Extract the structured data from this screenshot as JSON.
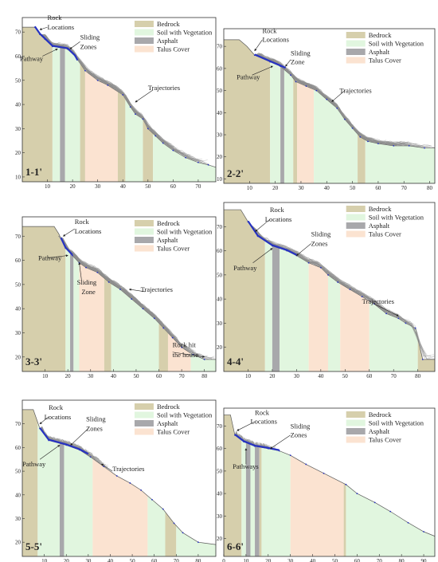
{
  "colors": {
    "bedrock": "#d6cfac",
    "soil": "#e1f6df",
    "asphalt": "#a8a8ab",
    "talus": "#fbe3d1",
    "trajectory": "#8d8d8d",
    "rock": "#2632c2",
    "outline": "#5a5a5a"
  },
  "legend_labels": [
    "Bedrock",
    "Soil with Vegetation",
    "Asphalt",
    "Talus Cover"
  ],
  "panels": [
    {
      "label": "1-1'",
      "xlim": [
        0,
        77
      ],
      "ylim": [
        8,
        76
      ],
      "xticks": [
        10,
        20,
        30,
        40,
        50,
        60,
        70
      ],
      "yticks": [
        10,
        20,
        30,
        40,
        50,
        60,
        70
      ],
      "profile": [
        [
          0,
          72
        ],
        [
          5,
          72
        ],
        [
          7,
          69
        ],
        [
          9,
          67
        ],
        [
          12,
          64
        ],
        [
          18,
          63
        ],
        [
          21,
          60
        ],
        [
          25,
          54
        ],
        [
          30,
          50
        ],
        [
          34,
          48
        ],
        [
          40,
          44
        ],
        [
          43,
          39
        ],
        [
          45,
          36
        ],
        [
          48,
          34
        ],
        [
          50,
          30
        ],
        [
          53,
          27
        ],
        [
          56,
          24
        ],
        [
          60,
          21
        ],
        [
          65,
          18
        ],
        [
          70,
          16
        ],
        [
          74,
          15
        ],
        [
          77,
          14
        ]
      ],
      "zones": [
        {
          "type": "bedrock",
          "x0": 0,
          "x1": 12
        },
        {
          "type": "soil",
          "x0": 12,
          "x1": 15
        },
        {
          "type": "asphalt",
          "x0": 15,
          "x1": 17
        },
        {
          "type": "soil",
          "x0": 17,
          "x1": 23
        },
        {
          "type": "bedrock",
          "x0": 23,
          "x1": 25
        },
        {
          "type": "talus",
          "x0": 25,
          "x1": 38
        },
        {
          "type": "bedrock",
          "x0": 38,
          "x1": 41
        },
        {
          "type": "soil",
          "x0": 41,
          "x1": 48
        },
        {
          "type": "bedrock",
          "x0": 48,
          "x1": 52
        },
        {
          "type": "soil",
          "x0": 52,
          "x1": 77
        }
      ],
      "rock_path": [
        [
          5,
          72
        ],
        [
          7,
          69
        ],
        [
          9,
          67
        ],
        [
          12,
          64
        ],
        [
          18,
          63
        ],
        [
          21,
          60
        ],
        [
          22,
          58
        ]
      ],
      "traj_start": [
        7,
        69
      ],
      "traj_end_x": [
        50,
        76
      ],
      "traj_count": 60,
      "annotations": [
        {
          "text": "Rock",
          "x": 10,
          "y": 75
        },
        {
          "text": "Locations",
          "x": 10,
          "y": 71
        },
        {
          "text": "Sliding",
          "x": 23,
          "y": 67
        },
        {
          "text": "Zones",
          "x": 23,
          "y": 63
        },
        {
          "text": "Pathway",
          "x": -1,
          "y": 58
        },
        {
          "text": "Trajectories",
          "x": 50,
          "y": 46
        }
      ]
    },
    {
      "label": "2-2'",
      "xlim": [
        0,
        82
      ],
      "ylim": [
        8,
        78
      ],
      "xticks": [
        10,
        20,
        30,
        40,
        50,
        60,
        70,
        80
      ],
      "yticks": [
        10,
        20,
        30,
        40,
        50,
        60,
        70
      ],
      "profile": [
        [
          0,
          73
        ],
        [
          6,
          73
        ],
        [
          9,
          70
        ],
        [
          12,
          66
        ],
        [
          18,
          63
        ],
        [
          22,
          61
        ],
        [
          26,
          57
        ],
        [
          28,
          54
        ],
        [
          32,
          52
        ],
        [
          36,
          50
        ],
        [
          40,
          46
        ],
        [
          44,
          42
        ],
        [
          47,
          37
        ],
        [
          50,
          33
        ],
        [
          53,
          29
        ],
        [
          56,
          27
        ],
        [
          60,
          26
        ],
        [
          66,
          25
        ],
        [
          72,
          25
        ],
        [
          78,
          24
        ],
        [
          82,
          24
        ]
      ],
      "zones": [
        {
          "type": "bedrock",
          "x0": 0,
          "x1": 18
        },
        {
          "type": "soil",
          "x0": 18,
          "x1": 22
        },
        {
          "type": "asphalt",
          "x0": 22,
          "x1": 23.5
        },
        {
          "type": "soil",
          "x0": 23.5,
          "x1": 27
        },
        {
          "type": "bedrock",
          "x0": 27,
          "x1": 28.5
        },
        {
          "type": "talus",
          "x0": 28.5,
          "x1": 35
        },
        {
          "type": "soil",
          "x0": 35,
          "x1": 52
        },
        {
          "type": "bedrock",
          "x0": 52,
          "x1": 55
        },
        {
          "type": "soil",
          "x0": 55,
          "x1": 82
        }
      ],
      "rock_path": [
        [
          12,
          66
        ],
        [
          18,
          63
        ],
        [
          22,
          61
        ],
        [
          24,
          60
        ]
      ],
      "traj_start": [
        12,
        66
      ],
      "traj_end_x": [
        50,
        82
      ],
      "traj_count": 70,
      "annotations": [
        {
          "text": "Rock",
          "x": 15,
          "y": 76
        },
        {
          "text": "Locations",
          "x": 15,
          "y": 72
        },
        {
          "text": "Sliding",
          "x": 26,
          "y": 66
        },
        {
          "text": "Zone",
          "x": 26,
          "y": 62
        },
        {
          "text": "Pathway",
          "x": 5,
          "y": 55
        },
        {
          "text": "Trajectories",
          "x": 45,
          "y": 49
        }
      ]
    },
    {
      "label": "3-3'",
      "xlim": [
        0,
        85
      ],
      "ylim": [
        14,
        78
      ],
      "xticks": [
        10,
        20,
        30,
        40,
        50,
        60,
        70,
        80
      ],
      "yticks": [
        20,
        30,
        40,
        50,
        60,
        70
      ],
      "profile": [
        [
          0,
          74
        ],
        [
          14,
          74
        ],
        [
          16,
          71
        ],
        [
          19,
          65
        ],
        [
          22,
          62
        ],
        [
          25,
          59
        ],
        [
          28,
          57
        ],
        [
          33,
          55
        ],
        [
          38,
          51
        ],
        [
          43,
          48
        ],
        [
          48,
          44
        ],
        [
          53,
          40
        ],
        [
          58,
          36
        ],
        [
          62,
          32
        ],
        [
          66,
          28
        ],
        [
          70,
          24
        ],
        [
          75,
          21
        ],
        [
          80,
          19
        ],
        [
          85,
          19
        ]
      ],
      "zones": [
        {
          "type": "bedrock",
          "x0": 0,
          "x1": 19
        },
        {
          "type": "soil",
          "x0": 19,
          "x1": 21
        },
        {
          "type": "asphalt",
          "x0": 21,
          "x1": 22.5
        },
        {
          "type": "soil",
          "x0": 22.5,
          "x1": 25
        },
        {
          "type": "talus",
          "x0": 25,
          "x1": 36
        },
        {
          "type": "bedrock",
          "x0": 36,
          "x1": 39
        },
        {
          "type": "soil",
          "x0": 39,
          "x1": 60
        },
        {
          "type": "bedrock",
          "x0": 60,
          "x1": 64
        },
        {
          "type": "talus",
          "x0": 64,
          "x1": 74
        },
        {
          "type": "soil",
          "x0": 74,
          "x1": 85
        }
      ],
      "rock_path": [
        [
          17,
          69
        ],
        [
          19,
          65
        ],
        [
          22,
          62
        ]
      ],
      "traj_start": [
        16,
        70
      ],
      "traj_end_x": [
        60,
        85
      ],
      "traj_count": 70,
      "annotations": [
        {
          "text": "Rock",
          "x": 23,
          "y": 75
        },
        {
          "text": "Locations",
          "x": 23,
          "y": 71
        },
        {
          "text": "Pathway",
          "x": 7,
          "y": 60
        },
        {
          "text": "Sliding",
          "x": 24,
          "y": 50
        },
        {
          "text": "Zone",
          "x": 26,
          "y": 46
        },
        {
          "text": "Trajectories",
          "x": 52,
          "y": 47
        },
        {
          "text": "Rock hit",
          "x": 66,
          "y": 24
        },
        {
          "text": "the house",
          "x": 66,
          "y": 20
        }
      ]
    },
    {
      "label": "4-4'",
      "xlim": [
        0,
        87
      ],
      "ylim": [
        10,
        80
      ],
      "xticks": [
        10,
        20,
        30,
        40,
        50,
        60,
        70,
        80
      ],
      "yticks": [
        20,
        30,
        40,
        50,
        60,
        70
      ],
      "profile": [
        [
          0,
          77
        ],
        [
          7,
          77
        ],
        [
          10,
          72
        ],
        [
          14,
          66
        ],
        [
          20,
          62
        ],
        [
          26,
          60
        ],
        [
          30,
          58
        ],
        [
          35,
          55
        ],
        [
          40,
          53
        ],
        [
          43,
          50
        ],
        [
          47,
          47
        ],
        [
          52,
          44
        ],
        [
          57,
          41
        ],
        [
          62,
          38
        ],
        [
          67,
          34
        ],
        [
          72,
          32
        ],
        [
          75,
          30
        ],
        [
          79,
          28
        ],
        [
          82,
          15
        ],
        [
          87,
          15
        ]
      ],
      "zones": [
        {
          "type": "bedrock",
          "x0": 0,
          "x1": 17
        },
        {
          "type": "soil",
          "x0": 17,
          "x1": 20
        },
        {
          "type": "asphalt",
          "x0": 20,
          "x1": 23
        },
        {
          "type": "soil",
          "x0": 23,
          "x1": 35
        },
        {
          "type": "talus",
          "x0": 35,
          "x1": 43
        },
        {
          "type": "soil",
          "x0": 43,
          "x1": 48
        },
        {
          "type": "talus",
          "x0": 48,
          "x1": 60
        },
        {
          "type": "soil",
          "x0": 60,
          "x1": 80
        },
        {
          "type": "bedrock",
          "x0": 80,
          "x1": 87
        }
      ],
      "rock_path": [
        [
          10,
          72
        ],
        [
          14,
          66
        ],
        [
          20,
          62
        ],
        [
          26,
          60
        ],
        [
          30,
          58
        ]
      ],
      "traj_start": [
        11,
        71
      ],
      "traj_end_x": [
        65,
        87
      ],
      "traj_count": 45,
      "annotations": [
        {
          "text": "Rock",
          "x": 19,
          "y": 76
        },
        {
          "text": "Locations",
          "x": 17,
          "y": 72
        },
        {
          "text": "Sliding",
          "x": 36,
          "y": 66
        },
        {
          "text": "Zones",
          "x": 36,
          "y": 62
        },
        {
          "text": "Pathway",
          "x": 4,
          "y": 52
        },
        {
          "text": "Trajectories",
          "x": 57,
          "y": 38
        }
      ]
    },
    {
      "label": "5-5'",
      "xlim": [
        0,
        88
      ],
      "ylim": [
        14,
        80
      ],
      "xticks": [
        10,
        20,
        30,
        40,
        50,
        60,
        70,
        80
      ],
      "yticks": [
        20,
        30,
        40,
        50,
        60,
        70
      ],
      "profile": [
        [
          0,
          76
        ],
        [
          5,
          76
        ],
        [
          8,
          68
        ],
        [
          12,
          63
        ],
        [
          20,
          61
        ],
        [
          26,
          59
        ],
        [
          31,
          56
        ],
        [
          37,
          52
        ],
        [
          43,
          48
        ],
        [
          49,
          45
        ],
        [
          54,
          42
        ],
        [
          59,
          38
        ],
        [
          64,
          34
        ],
        [
          69,
          28
        ],
        [
          73,
          24
        ],
        [
          80,
          20
        ],
        [
          88,
          19
        ]
      ],
      "zones": [
        {
          "type": "bedrock",
          "x0": 0,
          "x1": 7
        },
        {
          "type": "soil",
          "x0": 7,
          "x1": 17
        },
        {
          "type": "asphalt",
          "x0": 17,
          "x1": 19
        },
        {
          "type": "soil",
          "x0": 19,
          "x1": 32
        },
        {
          "type": "talus",
          "x0": 32,
          "x1": 57
        },
        {
          "type": "soil",
          "x0": 57,
          "x1": 65
        },
        {
          "type": "bedrock",
          "x0": 65,
          "x1": 70
        },
        {
          "type": "soil",
          "x0": 70,
          "x1": 88
        }
      ],
      "rock_path": [
        [
          8,
          68
        ],
        [
          12,
          63
        ],
        [
          20,
          61
        ],
        [
          26,
          59
        ],
        [
          30,
          57
        ]
      ],
      "traj_start": [
        8,
        68
      ],
      "traj_end_x": [
        30,
        40
      ],
      "traj_count": 40,
      "annotations": [
        {
          "text": "Rock",
          "x": 12,
          "y": 76
        },
        {
          "text": "Locations",
          "x": 10,
          "y": 72
        },
        {
          "text": "Sliding",
          "x": 29,
          "y": 71
        },
        {
          "text": "Zones",
          "x": 29,
          "y": 67
        },
        {
          "text": "Pathway",
          "x": 0,
          "y": 52
        },
        {
          "text": "Trajectories",
          "x": 41,
          "y": 50
        }
      ]
    },
    {
      "label": "6-6'",
      "xlim": [
        0,
        95
      ],
      "ylim": [
        12,
        78
      ],
      "xticks": [
        0,
        10,
        20,
        30,
        40,
        50,
        60,
        70,
        80,
        90
      ],
      "yticks": [
        20,
        30,
        40,
        50,
        60,
        70
      ],
      "profile": [
        [
          0,
          75
        ],
        [
          3,
          75
        ],
        [
          5,
          66
        ],
        [
          9,
          63
        ],
        [
          14,
          61
        ],
        [
          20,
          60
        ],
        [
          25,
          59
        ],
        [
          30,
          57
        ],
        [
          37,
          53
        ],
        [
          45,
          49
        ],
        [
          55,
          44
        ],
        [
          60,
          40
        ],
        [
          68,
          36
        ],
        [
          75,
          32
        ],
        [
          83,
          27
        ],
        [
          90,
          23
        ],
        [
          95,
          21
        ]
      ],
      "zones": [
        {
          "type": "bedrock",
          "x0": 0,
          "x1": 8
        },
        {
          "type": "soil",
          "x0": 8,
          "x1": 10
        },
        {
          "type": "asphalt",
          "x0": 10,
          "x1": 12
        },
        {
          "type": "soil",
          "x0": 12,
          "x1": 14
        },
        {
          "type": "asphalt",
          "x0": 14,
          "x1": 16
        },
        {
          "type": "bedrock",
          "x0": 16,
          "x1": 17
        },
        {
          "type": "soil",
          "x0": 17,
          "x1": 30
        },
        {
          "type": "talus",
          "x0": 30,
          "x1": 54
        },
        {
          "type": "bedrock",
          "x0": 54,
          "x1": 55
        },
        {
          "type": "soil",
          "x0": 55,
          "x1": 95
        }
      ],
      "rock_path": [
        [
          5,
          66
        ],
        [
          9,
          63
        ],
        [
          14,
          61
        ],
        [
          20,
          60
        ],
        [
          25,
          59
        ]
      ],
      "traj_start": [
        5,
        66
      ],
      "traj_end_x": [
        18,
        24
      ],
      "traj_count": 25,
      "annotations": [
        {
          "text": "Rock",
          "x": 14,
          "y": 75
        },
        {
          "text": "Locations",
          "x": 12,
          "y": 71
        },
        {
          "text": "Sliding",
          "x": 30,
          "y": 69
        },
        {
          "text": "Zones",
          "x": 30,
          "y": 65
        },
        {
          "text": "Pathways",
          "x": 4,
          "y": 51
        }
      ]
    }
  ]
}
